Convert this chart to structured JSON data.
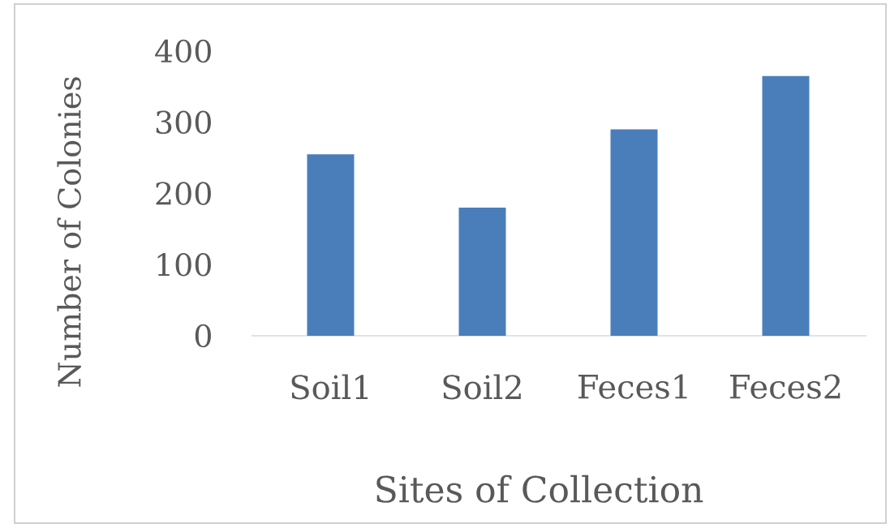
{
  "chart_data": {
    "type": "bar",
    "xlabel": "Sites of Collection",
    "ylabel": "Number of Colonies",
    "categories": [
      "Soil1",
      "Soil2",
      "Feces1",
      "Feces2"
    ],
    "values": [
      255,
      180,
      290,
      365
    ],
    "color": "#4a7ebb",
    "ylim": [
      0,
      400
    ],
    "yticks": [
      0,
      100,
      200,
      300,
      400
    ]
  }
}
